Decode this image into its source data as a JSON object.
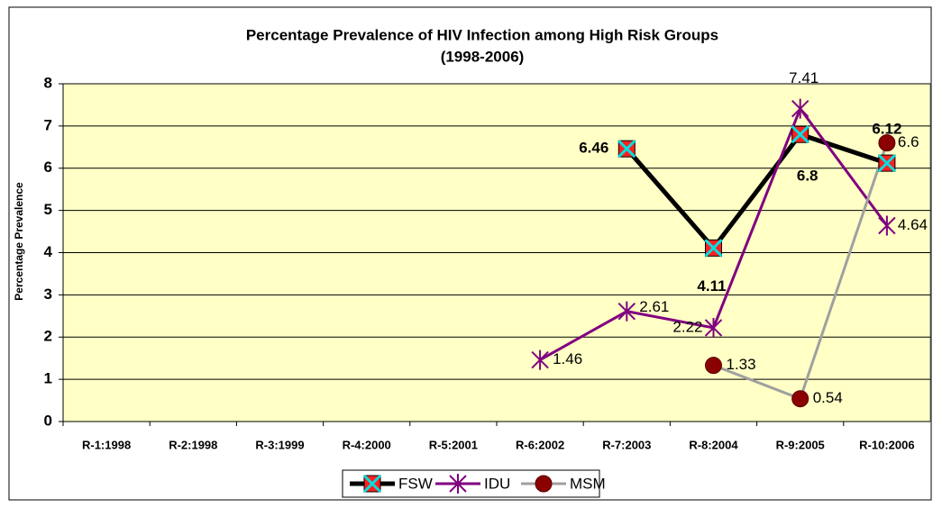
{
  "chart_data": {
    "type": "line",
    "title": "Percentage Prevalence of HIV Infection among High Risk Groups",
    "subtitle": "(1998-2006)",
    "y_label": "Percentage Prevalence",
    "categories": [
      "R-1:1998",
      "R-2:1998",
      "R-3:1999",
      "R-4:2000",
      "R-5:2001",
      "R-6:2002",
      "R-7:2003",
      "R-8:2004",
      "R-9:2005",
      "R-10:2006"
    ],
    "series": [
      {
        "name": "FSW",
        "color": "#000000",
        "marker": "square",
        "values": [
          null,
          null,
          null,
          null,
          null,
          null,
          6.46,
          4.11,
          6.8,
          6.12
        ]
      },
      {
        "name": "IDU",
        "color": "#800080",
        "marker": "star",
        "values": [
          null,
          null,
          null,
          null,
          null,
          1.46,
          2.61,
          2.22,
          7.41,
          4.64
        ]
      },
      {
        "name": "MSM",
        "color": "#a0a0a0",
        "marker": "circle",
        "values": [
          null,
          null,
          null,
          null,
          null,
          null,
          null,
          1.33,
          0.54,
          6.6
        ]
      }
    ],
    "ylim": [
      0,
      8
    ],
    "yticks": [
      0,
      1,
      2,
      3,
      4,
      5,
      6,
      7,
      8
    ],
    "grid": true,
    "legend": "bottom"
  }
}
